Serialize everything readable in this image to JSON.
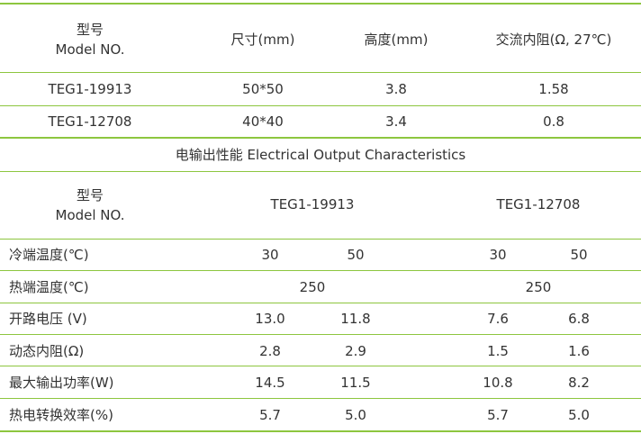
{
  "table1": {
    "header": {
      "model": [
        "型号",
        "Model NO."
      ],
      "columns": [
        "尺寸(mm)",
        "高度(mm)",
        "交流内阻(Ω, 27℃)"
      ]
    },
    "rows": [
      [
        "TEG1-19913",
        "50*50",
        "3.8",
        "1.58"
      ],
      [
        "TEG1-12708",
        "40*40",
        "3.4",
        "0.8"
      ]
    ]
  },
  "section_title": "电输出性能 Electrical Output Characteristics",
  "table2": {
    "header": {
      "model": [
        "型号",
        "Model NO."
      ],
      "groups": [
        "TEG1-19913",
        "TEG1-12708"
      ]
    },
    "rows": [
      {
        "label": "冷端温度(℃)",
        "values": [
          "30",
          "50",
          "30",
          "50"
        ]
      },
      {
        "label": "热端温度(℃)",
        "values": [
          "250",
          "250"
        ]
      },
      {
        "label": "开路电压 (V)",
        "values": [
          "13.0",
          "11.8",
          "7.6",
          "6.8"
        ]
      },
      {
        "label": "动态内阻(Ω)",
        "values": [
          "2.8",
          "2.9",
          "1.5",
          "1.6"
        ]
      },
      {
        "label": "最大输出功率(W)",
        "values": [
          "14.5",
          "11.5",
          "10.8",
          "8.2"
        ]
      },
      {
        "label": "热电转换效率(%)",
        "values": [
          "5.7",
          "5.0",
          "5.7",
          "5.0"
        ]
      }
    ]
  }
}
